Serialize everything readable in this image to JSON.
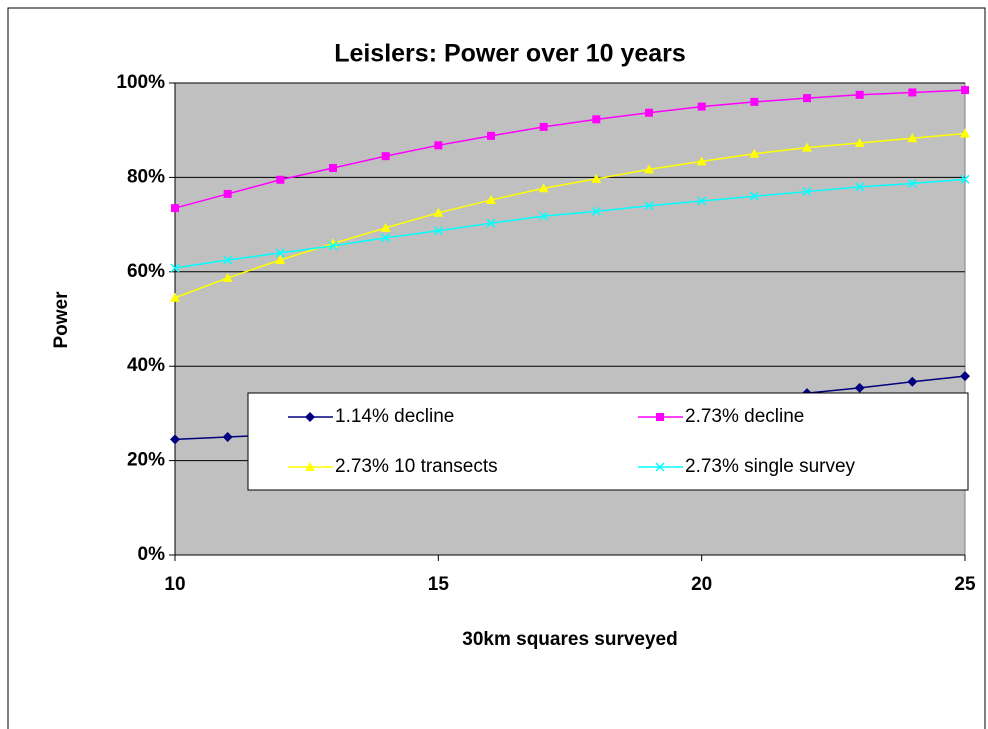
{
  "chart_data": {
    "type": "line",
    "title": "Leislers: Power over 10 years",
    "x_label": "30km squares surveyed",
    "y_label": "Power",
    "x": [
      10,
      11,
      12,
      13,
      14,
      15,
      16,
      17,
      18,
      19,
      20,
      21,
      22,
      23,
      24,
      25
    ],
    "series": [
      {
        "name": "1.14% decline",
        "color": "#000080",
        "marker": "diamond",
        "values": [
          24.5,
          25,
          25.5,
          26.2,
          26.9,
          27.6,
          28.4,
          29.2,
          30.1,
          31,
          32,
          33.1,
          34.3,
          35.4,
          36.7,
          37.9
        ]
      },
      {
        "name": "2.73% decline",
        "color": "#FF00FF",
        "marker": "square",
        "values": [
          73.5,
          76.5,
          79.5,
          82,
          84.5,
          86.8,
          88.8,
          90.7,
          92.3,
          93.7,
          95,
          96,
          96.8,
          97.5,
          98,
          98.5
        ]
      },
      {
        "name": "2.73% 10 transects",
        "color": "#FFFF00",
        "marker": "triangle",
        "values": [
          54.5,
          58.7,
          62.5,
          66,
          69.3,
          72.5,
          75.2,
          77.7,
          79.7,
          81.7,
          83.4,
          85,
          86.3,
          87.3,
          88.3,
          89.3
        ]
      },
      {
        "name": "2.73% single survey",
        "color": "#00FFFF",
        "marker": "x",
        "values": [
          60.8,
          62.5,
          64,
          65.5,
          67.2,
          68.7,
          70.3,
          71.8,
          72.8,
          74,
          75,
          76,
          77,
          78,
          78.7,
          79.6
        ]
      }
    ],
    "xlim": [
      10,
      25
    ],
    "xticks": [
      10,
      15,
      20,
      25
    ],
    "ylim": [
      0,
      100
    ],
    "yticks": [
      {
        "value": 0,
        "label": "0%"
      },
      {
        "value": 20,
        "label": "20%"
      },
      {
        "value": 40,
        "label": "40%"
      },
      {
        "value": 60,
        "label": "60%"
      },
      {
        "value": 80,
        "label": "80%"
      },
      {
        "value": 100,
        "label": "100%"
      }
    ],
    "grid": true,
    "legend": "lower right",
    "plot_background": "#C0C0C0"
  }
}
